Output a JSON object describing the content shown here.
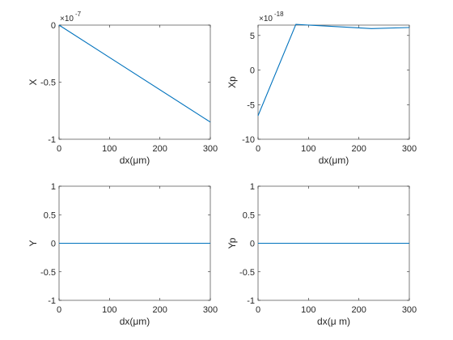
{
  "figure": {
    "background": "#ffffff",
    "axes_color": "#262626",
    "line_color": "#0072bd"
  },
  "chart_data": [
    {
      "type": "line",
      "xlabel": "dx(μm)",
      "ylabel": "X",
      "exponent_base": "×10",
      "exponent_power": "-7",
      "xlim": [
        0,
        300
      ],
      "ylim": [
        -1,
        0
      ],
      "xticks": [
        0,
        100,
        200,
        300
      ],
      "yticks": [
        0,
        -0.5,
        -1
      ],
      "xtick_labels": [
        "0",
        "100",
        "200",
        "300"
      ],
      "ytick_labels": [
        "0",
        "-0.5",
        "-1"
      ],
      "series": [
        {
          "x": [
            0,
            300
          ],
          "y": [
            0,
            -0.85
          ]
        }
      ]
    },
    {
      "type": "line",
      "xlabel": "dx(μm)",
      "ylabel": "Xp",
      "exponent_base": "×10",
      "exponent_power": "-18",
      "xlim": [
        0,
        300
      ],
      "ylim": [
        -10,
        6.5
      ],
      "xticks": [
        0,
        100,
        200,
        300
      ],
      "yticks": [
        5,
        0,
        -5,
        -10
      ],
      "xtick_labels": [
        "0",
        "100",
        "200",
        "300"
      ],
      "ytick_labels": [
        "5",
        "0",
        "-5",
        "-10"
      ],
      "series": [
        {
          "x": [
            0,
            75,
            150,
            225,
            300
          ],
          "y": [
            -6.6,
            6.6,
            6.3,
            6.0,
            6.15
          ]
        }
      ]
    },
    {
      "type": "line",
      "xlabel": "dx(μm)",
      "ylabel": "Y",
      "xlim": [
        0,
        300
      ],
      "ylim": [
        -1,
        1
      ],
      "xticks": [
        0,
        100,
        200,
        300
      ],
      "yticks": [
        1,
        0.5,
        0,
        -0.5,
        -1
      ],
      "xtick_labels": [
        "0",
        "100",
        "200",
        "300"
      ],
      "ytick_labels": [
        "1",
        "0.5",
        "0",
        "-0.5",
        "-1"
      ],
      "series": [
        {
          "x": [
            0,
            300
          ],
          "y": [
            0,
            0
          ]
        }
      ]
    },
    {
      "type": "line",
      "xlabel": "dx(μ m)",
      "ylabel": "Yp",
      "xlim": [
        0,
        300
      ],
      "ylim": [
        -1,
        1
      ],
      "xticks": [
        0,
        100,
        200,
        300
      ],
      "yticks": [
        1,
        0.5,
        0,
        -0.5,
        -1
      ],
      "xtick_labels": [
        "0",
        "100",
        "200",
        "300"
      ],
      "ytick_labels": [
        "1",
        "0.5",
        "0",
        "-0.5",
        "-1"
      ],
      "series": [
        {
          "x": [
            0,
            300
          ],
          "y": [
            0,
            0
          ]
        }
      ]
    }
  ]
}
